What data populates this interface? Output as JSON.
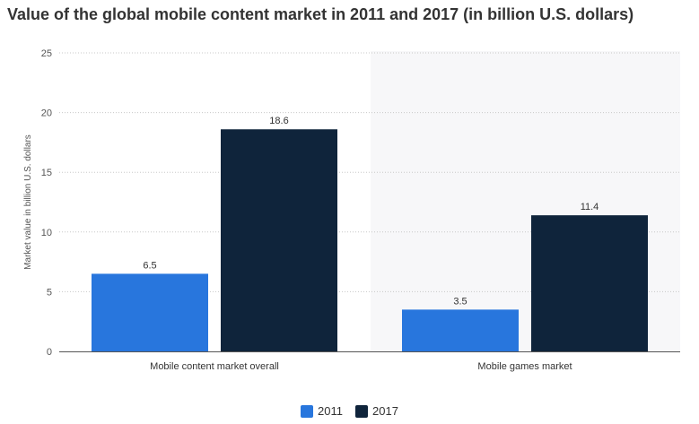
{
  "header": {
    "title": "Value of the global mobile content market in 2011 and 2017 (in billion U.S. dollars)"
  },
  "chart_data": {
    "type": "bar",
    "title": "Value of the global mobile content market in 2011 and 2017 (in billion U.S. dollars)",
    "xlabel": "",
    "ylabel": "Market value in billion U.S. dollars",
    "ylim": [
      0,
      25
    ],
    "yticks": [
      0,
      5,
      10,
      15,
      20,
      25
    ],
    "categories": [
      "Mobile content market overall",
      "Mobile games market"
    ],
    "series": [
      {
        "name": "2011",
        "color": "#2876dd",
        "values": [
          6.5,
          3.5
        ],
        "labels": [
          "6.5",
          "3.5"
        ]
      },
      {
        "name": "2017",
        "color": "#0f243b",
        "values": [
          18.6,
          11.4
        ],
        "labels": [
          "18.6",
          "11.4"
        ]
      }
    ],
    "highlight_band_color": "#f7f7f9",
    "legend_position": "bottom-center"
  }
}
